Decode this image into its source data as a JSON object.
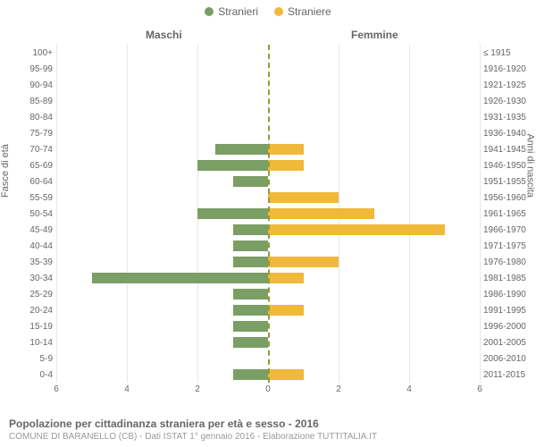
{
  "legend": {
    "male": {
      "label": "Stranieri",
      "color": "#7a9e64"
    },
    "female": {
      "label": "Straniere",
      "color": "#f0b93a"
    }
  },
  "section_labels": {
    "male": "Maschi",
    "female": "Femmine"
  },
  "axis_titles": {
    "left": "Fasce di età",
    "right": "Anni di nascita"
  },
  "chart": {
    "xmax": 6,
    "xtick_step": 2,
    "grid_color": "#e6e6e6",
    "center_line_color": "#999933",
    "background_color": "#ffffff",
    "label_fontsize": 10,
    "bar_height_ratio": 0.66,
    "xticks_left": [
      "6",
      "4",
      "2"
    ],
    "xtick_center": "0",
    "xticks_right": [
      "2",
      "4",
      "6"
    ]
  },
  "rows": [
    {
      "age": "100+",
      "birth": "≤ 1915",
      "m": 0,
      "f": 0
    },
    {
      "age": "95-99",
      "birth": "1916-1920",
      "m": 0,
      "f": 0
    },
    {
      "age": "90-94",
      "birth": "1921-1925",
      "m": 0,
      "f": 0
    },
    {
      "age": "85-89",
      "birth": "1926-1930",
      "m": 0,
      "f": 0
    },
    {
      "age": "80-84",
      "birth": "1931-1935",
      "m": 0,
      "f": 0
    },
    {
      "age": "75-79",
      "birth": "1936-1940",
      "m": 0,
      "f": 0
    },
    {
      "age": "70-74",
      "birth": "1941-1945",
      "m": 1.5,
      "f": 1
    },
    {
      "age": "65-69",
      "birth": "1946-1950",
      "m": 2,
      "f": 1
    },
    {
      "age": "60-64",
      "birth": "1951-1955",
      "m": 1,
      "f": 0
    },
    {
      "age": "55-59",
      "birth": "1956-1960",
      "m": 0,
      "f": 2
    },
    {
      "age": "50-54",
      "birth": "1961-1965",
      "m": 2,
      "f": 3
    },
    {
      "age": "45-49",
      "birth": "1966-1970",
      "m": 1,
      "f": 5
    },
    {
      "age": "40-44",
      "birth": "1971-1975",
      "m": 1,
      "f": 0
    },
    {
      "age": "35-39",
      "birth": "1976-1980",
      "m": 1,
      "f": 2
    },
    {
      "age": "30-34",
      "birth": "1981-1985",
      "m": 5,
      "f": 1
    },
    {
      "age": "25-29",
      "birth": "1986-1990",
      "m": 1,
      "f": 0
    },
    {
      "age": "20-24",
      "birth": "1991-1995",
      "m": 1,
      "f": 1
    },
    {
      "age": "15-19",
      "birth": "1996-2000",
      "m": 1,
      "f": 0
    },
    {
      "age": "10-14",
      "birth": "2001-2005",
      "m": 1,
      "f": 0
    },
    {
      "age": "5-9",
      "birth": "2006-2010",
      "m": 0,
      "f": 0
    },
    {
      "age": "0-4",
      "birth": "2011-2015",
      "m": 1,
      "f": 1
    }
  ],
  "footer": {
    "title": "Popolazione per cittadinanza straniera per età e sesso - 2016",
    "subtitle": "COMUNE DI BARANELLO (CB) - Dati ISTAT 1° gennaio 2016 - Elaborazione TUTTITALIA.IT"
  }
}
